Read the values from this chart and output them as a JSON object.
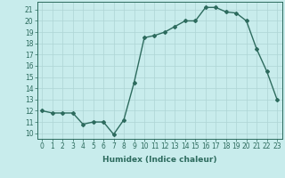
{
  "xlabel": "Humidex (Indice chaleur)",
  "x": [
    0,
    1,
    2,
    3,
    4,
    5,
    6,
    7,
    8,
    9,
    10,
    11,
    12,
    13,
    14,
    15,
    16,
    17,
    18,
    19,
    20,
    21,
    22,
    23
  ],
  "y": [
    12,
    11.8,
    11.8,
    11.8,
    10.8,
    11.0,
    11.0,
    9.9,
    11.2,
    14.5,
    18.5,
    18.7,
    19.0,
    19.5,
    20.0,
    20.0,
    21.2,
    21.2,
    20.8,
    20.7,
    20.0,
    17.5,
    15.5,
    13.0
  ],
  "ylim": [
    9.5,
    21.7
  ],
  "xlim": [
    -0.5,
    23.5
  ],
  "yticks": [
    10,
    11,
    12,
    13,
    14,
    15,
    16,
    17,
    18,
    19,
    20,
    21
  ],
  "xticks": [
    0,
    1,
    2,
    3,
    4,
    5,
    6,
    7,
    8,
    9,
    10,
    11,
    12,
    13,
    14,
    15,
    16,
    17,
    18,
    19,
    20,
    21,
    22,
    23
  ],
  "line_color": "#2d6b5e",
  "marker": "D",
  "marker_size": 2.0,
  "bg_color": "#c8ecec",
  "grid_color": "#aed4d4",
  "line_width": 1.0,
  "xlabel_fontsize": 6.5,
  "tick_fontsize": 5.5
}
